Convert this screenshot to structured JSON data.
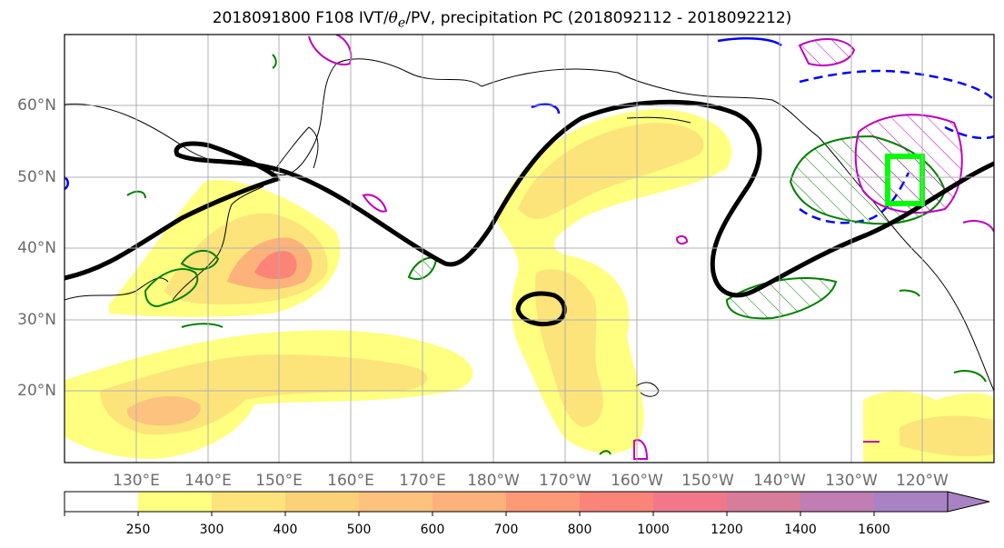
{
  "title": {
    "prefix": "2018091800 F108 IVT/",
    "theta": "θ",
    "sub": "e",
    "suffix": "/PV, precipitation PC (2018092112 - 2018092212)"
  },
  "map": {
    "lat_labels": [
      "60°N",
      "50°N",
      "40°N",
      "30°N",
      "20°N"
    ],
    "lon_labels": [
      "130°E",
      "140°E",
      "150°E",
      "160°E",
      "170°E",
      "180°W",
      "170°W",
      "160°W",
      "150°W",
      "140°W",
      "130°W",
      "120°W"
    ],
    "colors": {
      "jet_contour": "#000000",
      "theta_e_contour": "#008000",
      "pv_contour_dashed": "#0000ff",
      "precip_contour": "#bf00bf",
      "target_box": "#00ff00",
      "coastline": "#000000",
      "gridline": "#b0b0b0"
    }
  },
  "colorbar": {
    "tick_labels": [
      "250",
      "300",
      "400",
      "500",
      "600",
      "700",
      "800",
      "1000",
      "1200",
      "1400",
      "1600"
    ],
    "bins": [
      {
        "color": "#ffffff"
      },
      {
        "color": "#ffff80"
      },
      {
        "color": "#fde47a"
      },
      {
        "color": "#fbd278"
      },
      {
        "color": "#fcc27e"
      },
      {
        "color": "#fcb27a"
      },
      {
        "color": "#fc9a78"
      },
      {
        "color": "#fb8479"
      },
      {
        "color": "#f0788a"
      },
      {
        "color": "#d87c9c"
      },
      {
        "color": "#c07eb4"
      },
      {
        "color": "#a982c4"
      }
    ],
    "extend": "max"
  }
}
